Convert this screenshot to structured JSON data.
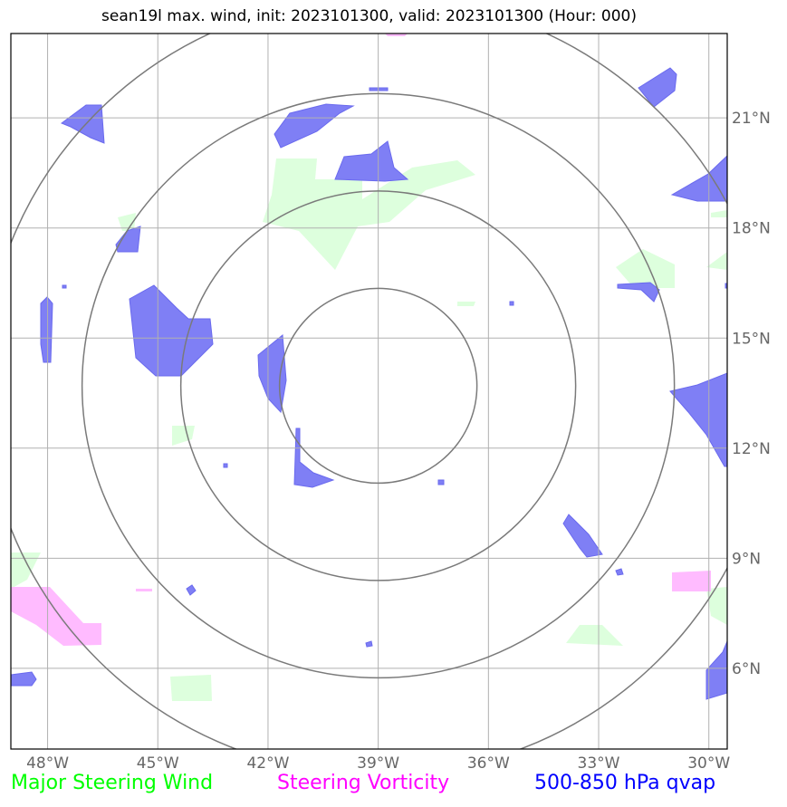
{
  "title": "sean19l max. wind, init: 2023101300, valid: 2023101300 (Hour: 000)",
  "map": {
    "lon_range": [
      -49,
      -29.5
    ],
    "lat_range": [
      3.8,
      23.3
    ],
    "lon_ticks": [
      "48°W",
      "45°W",
      "42°W",
      "39°W",
      "36°W",
      "33°W",
      "30°W"
    ],
    "lat_ticks": [
      "21°N",
      "18°N",
      "15°N",
      "12°N",
      "9°N",
      "6°N"
    ],
    "grid": true,
    "range_ring_center": {
      "lon": -39.0,
      "lat": 13.7
    },
    "range_ring_count": 4
  },
  "legend": {
    "wind": {
      "label": "Major Steering Wind",
      "color": "#00ff00"
    },
    "vorticity": {
      "label": "Steering Vorticity",
      "color": "#ff00ff"
    },
    "qvap": {
      "label": "500-850 hPa qvap",
      "color": "#0000ff"
    }
  },
  "colors": {
    "qvap_fill": "#7f7ff5",
    "wind_fill": "#ddffdd",
    "vort_fill": "#ffbbff",
    "ring": "#7a7a7a",
    "grid": "#b0b0b0"
  }
}
